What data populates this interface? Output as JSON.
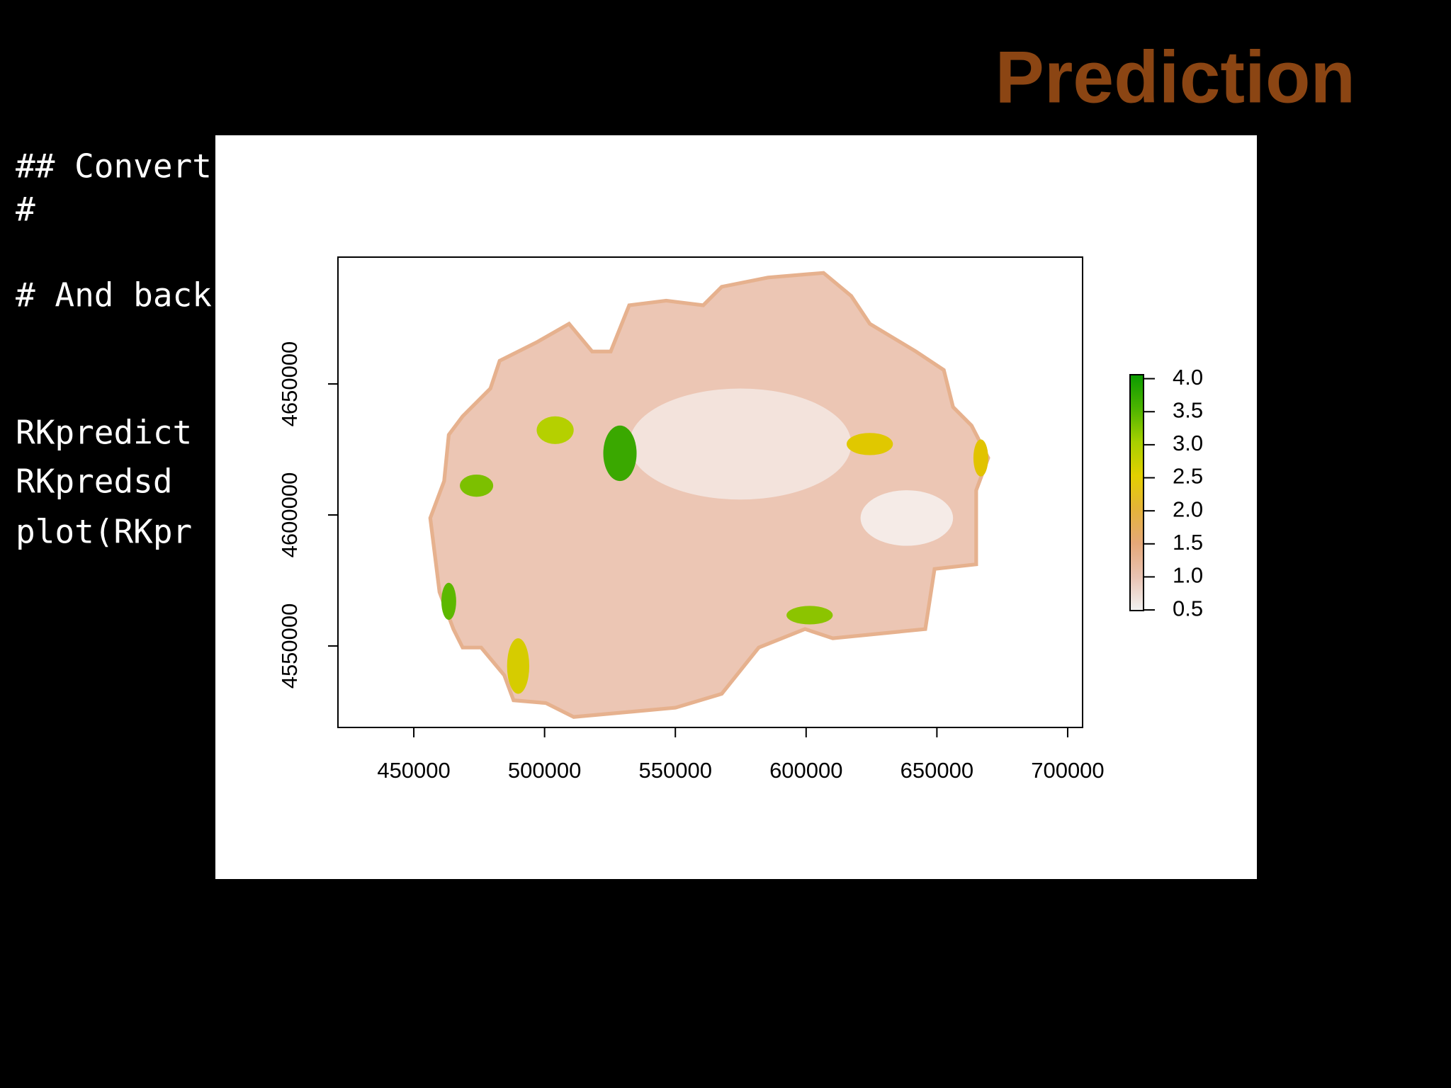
{
  "title": "Prediction",
  "code_lines": [
    "## Convert",
    "#",
    "# And back",
    "RKpredict",
    "RKpredsd",
    "plot(RKpr"
  ],
  "chart_data": {
    "type": "raster",
    "xlim": [
      421000,
      705700
    ],
    "xticks": [
      450000,
      500000,
      550000,
      600000,
      650000,
      700000
    ],
    "ylim": [
      4518900,
      4698400
    ],
    "yticks": [
      4550000,
      4600000,
      4650000
    ],
    "legend_lim": [
      0.49,
      4.06
    ],
    "legend_ticks": [
      0.5,
      {
        "value": 1,
        "label": "1.0"
      },
      1.5,
      {
        "value": 2,
        "label": "2.0"
      },
      2.5,
      {
        "value": 3,
        "label": "3.0"
      },
      3.5,
      {
        "value": 4,
        "label": "4.0"
      }
    ],
    "colorscale": [
      "#f2f2f2",
      "#e9c3b2",
      "#e5a878",
      "#e5b33a",
      "#e3d000",
      "#a7d000",
      "#4cb400",
      "#0a9a00"
    ]
  }
}
